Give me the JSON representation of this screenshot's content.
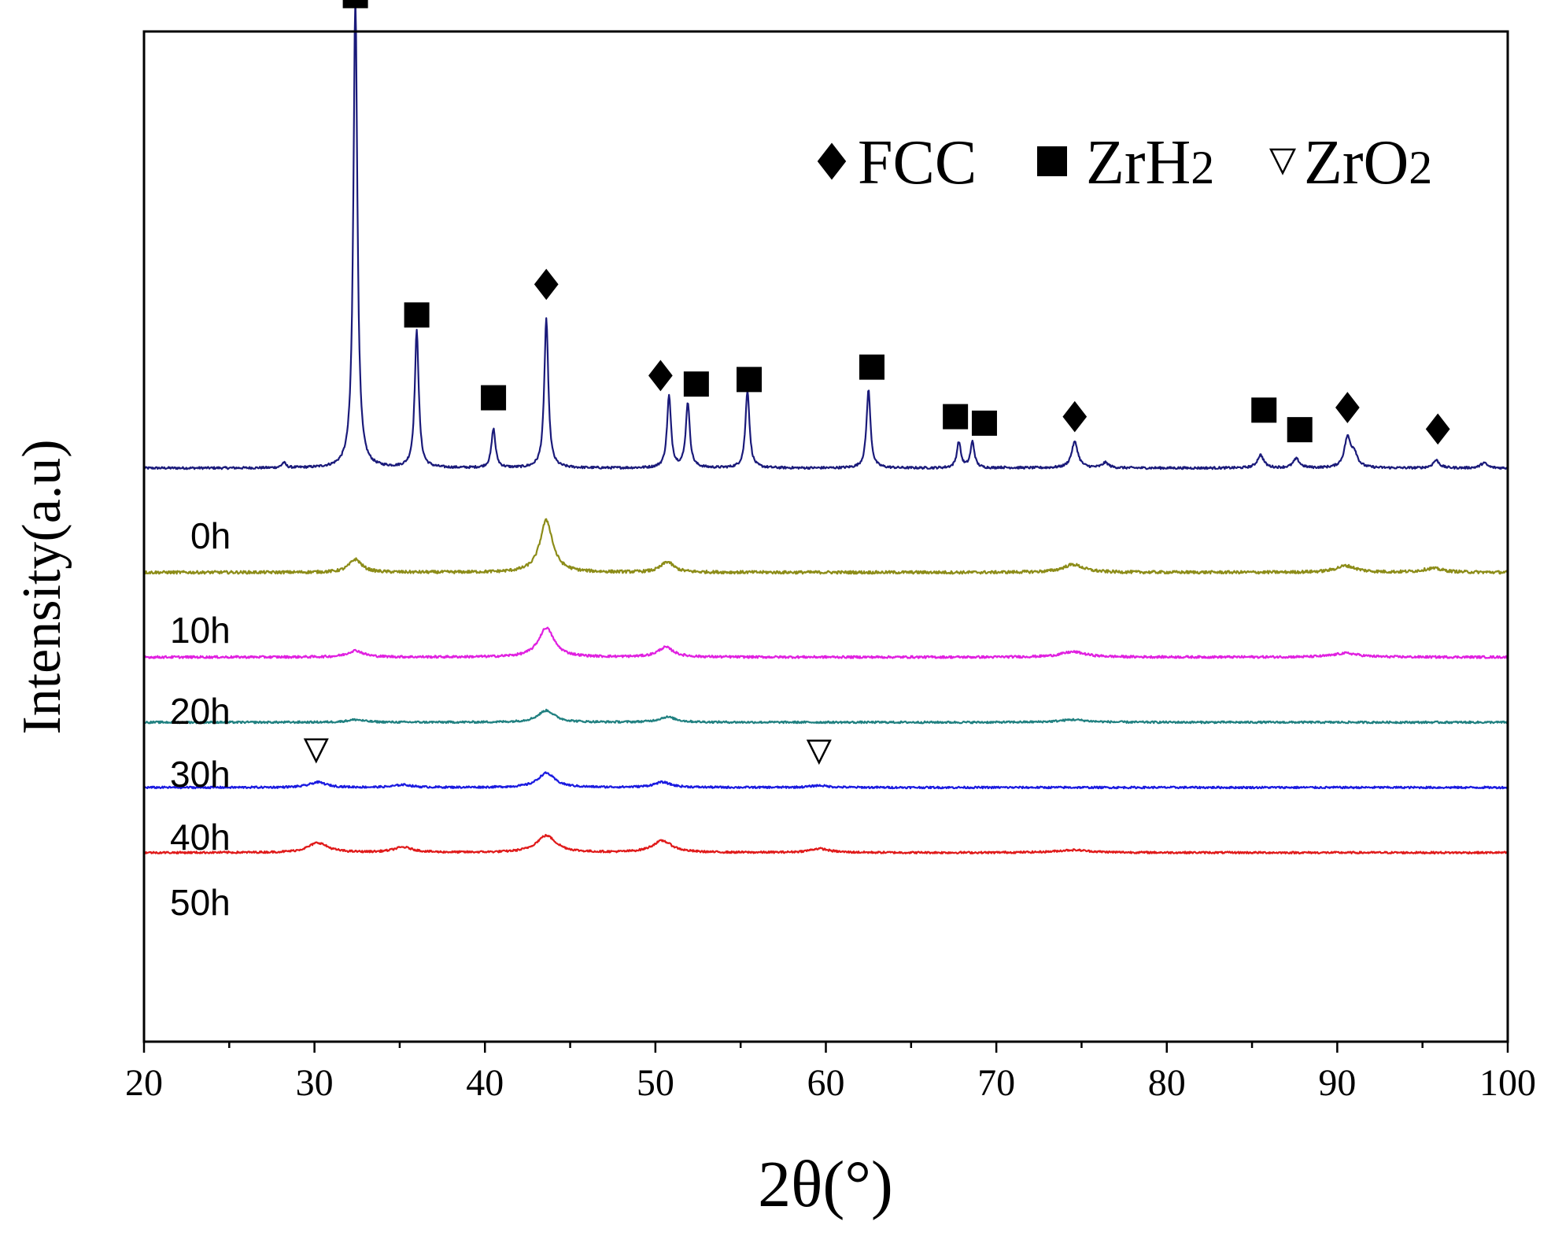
{
  "chart_data": {
    "type": "line",
    "title": "",
    "xlabel": "2θ(°)",
    "ylabel": "Intensity(a.u)",
    "xlim": [
      20,
      100
    ],
    "xticks": [
      20,
      30,
      40,
      50,
      60,
      70,
      80,
      90,
      100
    ],
    "y_units": "arbitrary intensity (stacked, offset traces)",
    "ylim": [
      -10,
      145
    ],
    "grid": false,
    "legend": {
      "placement": "top-right",
      "entries": [
        {
          "marker": "diamond",
          "label": "FCC",
          "sub": ""
        },
        {
          "marker": "square",
          "label": "ZrH",
          "sub": "2"
        },
        {
          "marker": "triangle-down-open",
          "label": "ZrO",
          "sub": "2"
        }
      ]
    },
    "series": [
      {
        "name": "0h",
        "color": "#1a1a7a",
        "baseline": 78,
        "width": 0.14,
        "noise": 0.35,
        "peaks": [
          [
            28.2,
            0.8
          ],
          [
            32.4,
            72
          ],
          [
            36.0,
            21
          ],
          [
            40.5,
            6
          ],
          [
            43.6,
            23
          ],
          [
            50.8,
            11
          ],
          [
            51.9,
            10
          ],
          [
            55.4,
            12
          ],
          [
            62.5,
            12
          ],
          [
            67.8,
            4
          ],
          [
            68.6,
            4
          ],
          [
            74.6,
            4
          ],
          [
            76.4,
            0.8
          ],
          [
            85.5,
            2
          ],
          [
            87.6,
            1.4
          ],
          [
            90.6,
            4.5
          ],
          [
            91.0,
            2
          ],
          [
            95.8,
            1.2
          ],
          [
            98.6,
            0.8
          ]
        ]
      },
      {
        "name": "10h",
        "color": "#8c8c18",
        "baseline": 62,
        "width": 0.45,
        "noise": 0.45,
        "peaks": [
          [
            32.4,
            2
          ],
          [
            43.6,
            8
          ],
          [
            50.7,
            1.6
          ],
          [
            74.5,
            1.2
          ],
          [
            90.5,
            1
          ],
          [
            95.6,
            0.6
          ]
        ]
      },
      {
        "name": "20h",
        "color": "#e020e0",
        "baseline": 49,
        "width": 0.55,
        "noise": 0.35,
        "peaks": [
          [
            32.4,
            1
          ],
          [
            43.6,
            4.5
          ],
          [
            50.6,
            1.5
          ],
          [
            74.5,
            0.8
          ],
          [
            90.5,
            0.6
          ]
        ]
      },
      {
        "name": "30h",
        "color": "#208080",
        "baseline": 39,
        "width": 0.6,
        "noise": 0.3,
        "peaks": [
          [
            32.4,
            0.4
          ],
          [
            43.6,
            1.8
          ],
          [
            50.7,
            0.8
          ],
          [
            74.5,
            0.4
          ]
        ]
      },
      {
        "name": "40h",
        "color": "#1a1ae0",
        "baseline": 29,
        "width": 0.6,
        "noise": 0.3,
        "peaks": [
          [
            30.2,
            0.8
          ],
          [
            35.2,
            0.4
          ],
          [
            43.6,
            2.2
          ],
          [
            50.4,
            0.8
          ],
          [
            59.6,
            0.3
          ]
        ]
      },
      {
        "name": "50h",
        "color": "#e01a1a",
        "baseline": 19,
        "width": 0.7,
        "noise": 0.3,
        "peaks": [
          [
            30.2,
            1.5
          ],
          [
            35.2,
            0.8
          ],
          [
            43.6,
            2.6
          ],
          [
            50.4,
            1.8
          ],
          [
            59.6,
            0.6
          ],
          [
            74.5,
            0.4
          ]
        ]
      }
    ],
    "annotations": [
      {
        "marker": "square",
        "x": 32.4,
        "y": 150.5
      },
      {
        "marker": "square",
        "x": 36.0,
        "y": 101.5
      },
      {
        "marker": "square",
        "x": 40.5,
        "y": 88.8
      },
      {
        "marker": "diamond",
        "x": 43.6,
        "y": 106.2
      },
      {
        "marker": "diamond",
        "x": 50.3,
        "y": 92.2
      },
      {
        "marker": "square",
        "x": 52.4,
        "y": 90.9
      },
      {
        "marker": "square",
        "x": 55.5,
        "y": 91.6
      },
      {
        "marker": "square",
        "x": 62.7,
        "y": 93.5
      },
      {
        "marker": "square",
        "x": 67.6,
        "y": 85.9
      },
      {
        "marker": "square",
        "x": 69.3,
        "y": 84.9
      },
      {
        "marker": "diamond",
        "x": 74.6,
        "y": 85.9
      },
      {
        "marker": "square",
        "x": 85.7,
        "y": 86.9
      },
      {
        "marker": "square",
        "x": 87.8,
        "y": 83.9
      },
      {
        "marker": "diamond",
        "x": 90.6,
        "y": 87.3
      },
      {
        "marker": "diamond",
        "x": 95.9,
        "y": 84.0
      },
      {
        "marker": "triangle-down-open",
        "x": 30.1,
        "y": 34.7
      },
      {
        "marker": "triangle-down-open",
        "x": 59.6,
        "y": 34.5
      }
    ]
  }
}
